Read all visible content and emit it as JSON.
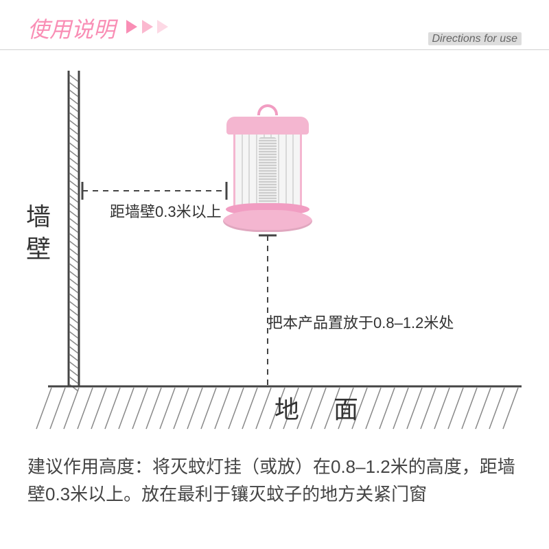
{
  "header": {
    "title_cn": "使用说明",
    "title_en": "Directions for use",
    "title_cn_color": "#f98eb5",
    "arrow_colors": [
      "#f98eb5",
      "#fbb8cf",
      "#fdd9e5"
    ]
  },
  "diagram": {
    "wall_label": "墙壁",
    "ground_label": "地 面",
    "wall_distance_label": "距墙壁0.3米以上",
    "height_label": "把本产品置放于0.8–1.2米处",
    "line_color": "#444444",
    "hatch_color": "#888888",
    "product_color": "#f4b6d0",
    "product_accent": "#f19dc2"
  },
  "instructions": {
    "text": "建议作用高度：将灭蚊灯挂（或放）在0.8–1.2米的高度，距墙壁0.3米以上。放在最利于镶灭蚊子的地方关紧门窗"
  }
}
